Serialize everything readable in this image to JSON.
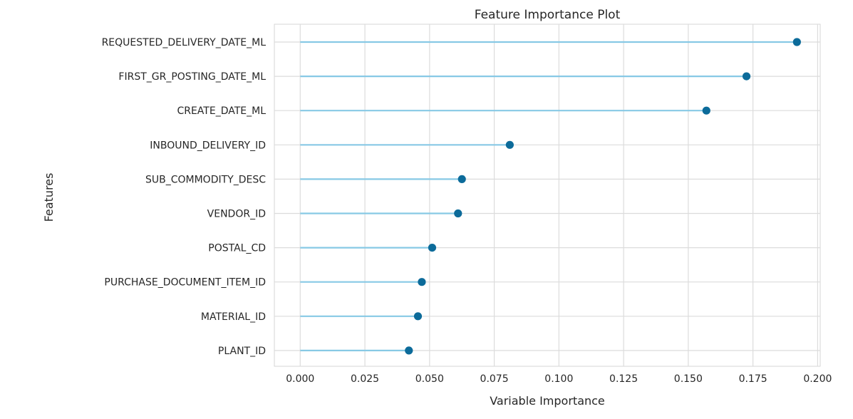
{
  "chart_data": {
    "type": "scatter",
    "style": "lollipop",
    "title": "Feature Importance Plot",
    "xlabel": "Variable Importance",
    "ylabel": "Features",
    "xlim": [
      -0.01,
      0.201
    ],
    "xticks": [
      "0.000",
      "0.025",
      "0.050",
      "0.075",
      "0.100",
      "0.125",
      "0.150",
      "0.175",
      "0.200"
    ],
    "grid": true,
    "categories": [
      "REQUESTED_DELIVERY_DATE_ML",
      "FIRST_GR_POSTING_DATE_ML",
      "CREATE_DATE_ML",
      "INBOUND_DELIVERY_ID",
      "SUB_COMMODITY_DESC",
      "VENDOR_ID",
      "POSTAL_CD",
      "PURCHASE_DOCUMENT_ITEM_ID",
      "MATERIAL_ID",
      "PLANT_ID"
    ],
    "values": [
      0.192,
      0.1725,
      0.157,
      0.081,
      0.0625,
      0.061,
      0.051,
      0.047,
      0.0455,
      0.042
    ],
    "stem_color": "#87c9e5",
    "marker_color": "#0c6b9a"
  }
}
